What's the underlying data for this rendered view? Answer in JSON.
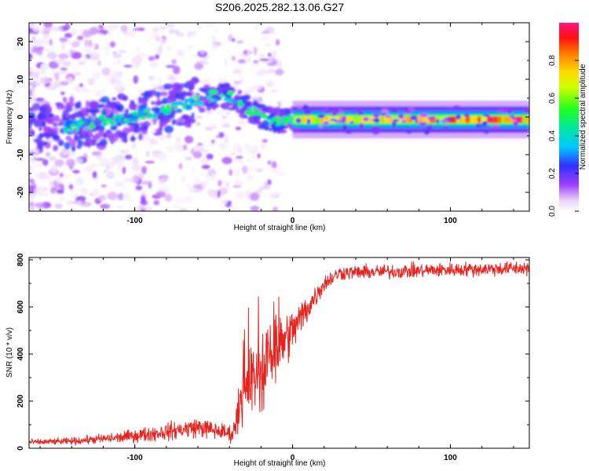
{
  "title": "S206.2025.282.13.06.G27",
  "colors": {
    "line": "#e8231f",
    "axis": "#000000"
  },
  "chart_data": [
    {
      "type": "heatmap",
      "name": "spectrogram",
      "xlabel": "Height of straight line (km)",
      "ylabel": "Frequency (Hz)",
      "xlim": [
        -167,
        150
      ],
      "ylim": [
        -25,
        25
      ],
      "xticks": [
        -100,
        0,
        100
      ],
      "xtick_labels": [
        "-100",
        "0",
        "100"
      ],
      "yticks": [
        -20,
        -10,
        0,
        10,
        20
      ],
      "ytick_labels": [
        "-20",
        "-10",
        "0",
        "10",
        "20"
      ],
      "track": [
        {
          "x": -167,
          "y": -2
        },
        {
          "x": -140,
          "y": -2.5
        },
        {
          "x": -110,
          "y": -0.5
        },
        {
          "x": -90,
          "y": 1
        },
        {
          "x": -70,
          "y": 3
        },
        {
          "x": -55,
          "y": 5
        },
        {
          "x": -45,
          "y": 6
        },
        {
          "x": -35,
          "y": 4.5
        },
        {
          "x": -28,
          "y": 2
        },
        {
          "x": -20,
          "y": 0
        },
        {
          "x": -10,
          "y": -1
        },
        {
          "x": 0,
          "y": -1
        },
        {
          "x": 30,
          "y": -0.7
        },
        {
          "x": 150,
          "y": -0.7
        }
      ],
      "colorbar": {
        "label": "Normalized spectral amplitude",
        "range": [
          0,
          1
        ],
        "ticks": [
          0.0,
          0.2,
          0.4,
          0.6,
          0.8
        ],
        "tick_labels": [
          "0.0",
          "0.2",
          "0.4",
          "0.6",
          "0.8"
        ]
      }
    },
    {
      "type": "line",
      "name": "snr",
      "xlabel": "Height of straight line (km)",
      "ylabel": "SNR (10 * v/v)",
      "xlim": [
        -167,
        150
      ],
      "ylim": [
        0,
        810
      ],
      "xticks": [
        -100,
        0,
        100
      ],
      "xtick_labels": [
        "-100",
        "0",
        "100"
      ],
      "yticks": [
        0,
        200,
        400,
        600,
        800
      ],
      "ytick_labels": [
        "0",
        "200",
        "400",
        "600",
        "800"
      ],
      "series": [
        {
          "name": "SNR",
          "envelope": [
            {
              "x": -167,
              "mean": 25,
              "noise": 10
            },
            {
              "x": -140,
              "mean": 30,
              "noise": 12
            },
            {
              "x": -110,
              "mean": 45,
              "noise": 20
            },
            {
              "x": -80,
              "mean": 70,
              "noise": 30
            },
            {
              "x": -60,
              "mean": 90,
              "noise": 35
            },
            {
              "x": -45,
              "mean": 70,
              "noise": 30
            },
            {
              "x": -38,
              "mean": 60,
              "noise": 30
            },
            {
              "x": -33,
              "mean": 180,
              "noise": 80
            },
            {
              "x": -28,
              "mean": 260,
              "noise": 110
            },
            {
              "x": -20,
              "mean": 330,
              "noise": 150
            },
            {
              "x": -10,
              "mean": 420,
              "noise": 110
            },
            {
              "x": 0,
              "mean": 500,
              "noise": 80
            },
            {
              "x": 10,
              "mean": 600,
              "noise": 50
            },
            {
              "x": 20,
              "mean": 700,
              "noise": 30
            },
            {
              "x": 30,
              "mean": 745,
              "noise": 25
            },
            {
              "x": 60,
              "mean": 750,
              "noise": 25
            },
            {
              "x": 100,
              "mean": 758,
              "noise": 25
            },
            {
              "x": 150,
              "mean": 765,
              "noise": 25
            }
          ]
        }
      ]
    }
  ]
}
